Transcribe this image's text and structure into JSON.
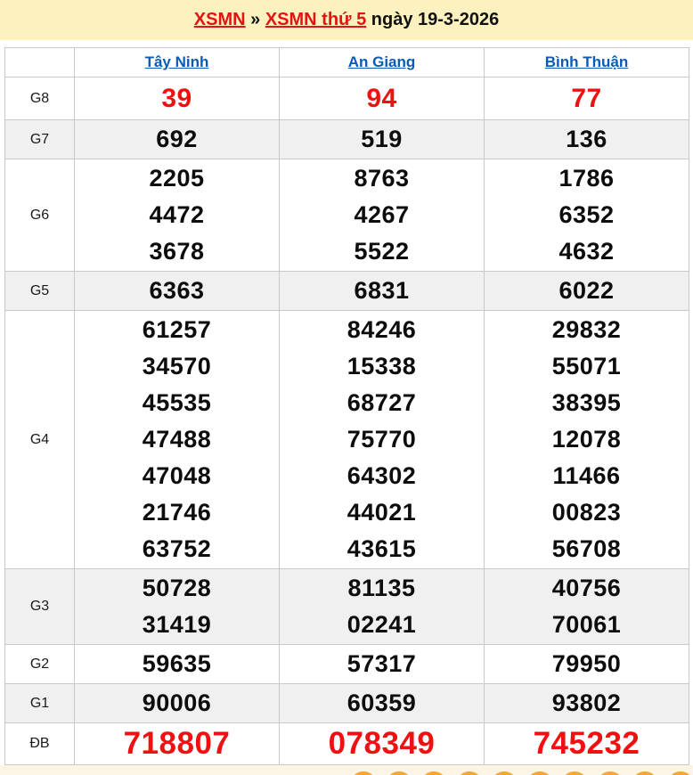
{
  "header": {
    "link1": "XSMN",
    "separator": " » ",
    "link2": "XSMN thứ 5",
    "date_text": " ngày 19-3-2026"
  },
  "table": {
    "columns": [
      "Tây Ninh",
      "An Giang",
      "Bình Thuận"
    ],
    "rows": [
      {
        "label": "G8",
        "highlight": true,
        "values": [
          [
            "39"
          ],
          [
            "94"
          ],
          [
            "77"
          ]
        ]
      },
      {
        "label": "G7",
        "values": [
          [
            "692"
          ],
          [
            "519"
          ],
          [
            "136"
          ]
        ]
      },
      {
        "label": "G6",
        "values": [
          [
            "2205",
            "4472",
            "3678"
          ],
          [
            "8763",
            "4267",
            "5522"
          ],
          [
            "1786",
            "6352",
            "4632"
          ]
        ]
      },
      {
        "label": "G5",
        "values": [
          [
            "6363"
          ],
          [
            "6831"
          ],
          [
            "6022"
          ]
        ]
      },
      {
        "label": "G4",
        "values": [
          [
            "61257",
            "34570",
            "45535",
            "47488",
            "47048",
            "21746",
            "63752"
          ],
          [
            "84246",
            "15338",
            "68727",
            "75770",
            "64302",
            "44021",
            "43615"
          ],
          [
            "29832",
            "55071",
            "38395",
            "12078",
            "11466",
            "00823",
            "56708"
          ]
        ]
      },
      {
        "label": "G3",
        "values": [
          [
            "50728",
            "31419"
          ],
          [
            "81135",
            "02241"
          ],
          [
            "40756",
            "70061"
          ]
        ]
      },
      {
        "label": "G2",
        "values": [
          [
            "59635"
          ],
          [
            "57317"
          ],
          [
            "79950"
          ]
        ]
      },
      {
        "label": "G1",
        "values": [
          [
            "90006"
          ],
          [
            "60359"
          ],
          [
            "93802"
          ]
        ]
      },
      {
        "label": "ĐB",
        "highlight": true,
        "values": [
          [
            "718807"
          ],
          [
            "078349"
          ],
          [
            "745232"
          ]
        ]
      }
    ]
  },
  "footer": {
    "balls_visible": 10
  },
  "colors": {
    "header_bg": "#fdf1c0",
    "accent_red": "#ee1111",
    "link_blue": "#0a5bb5",
    "shade_row_bg": "#f0f0f0",
    "border": "#c9c9c9",
    "footer_bg": "#fcf5e6",
    "ball_orange": "#f5a733"
  }
}
